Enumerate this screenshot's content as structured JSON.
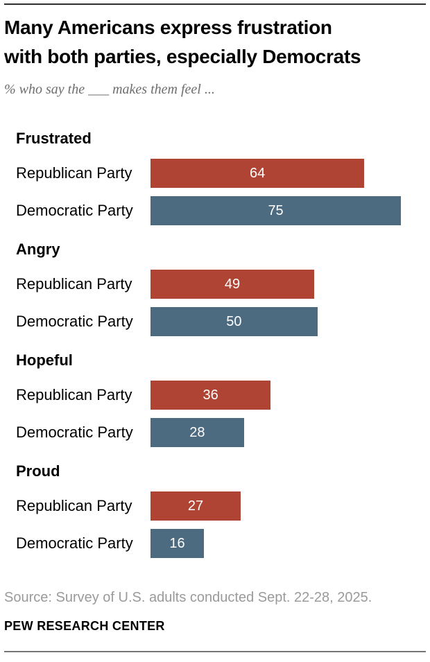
{
  "header": {
    "title_lines": [
      "Many Americans express frustration",
      "with both parties, especially Democrats"
    ],
    "subtitle": "% who say the ___ makes them feel ..."
  },
  "chart_data": {
    "type": "bar",
    "orientation": "horizontal",
    "title": "Many Americans express frustration with both parties, especially Democrats",
    "subtitle": "% who say the ___ makes them feel ...",
    "unit": "percent",
    "xlim": [
      0,
      100
    ],
    "grid": false,
    "legend": "none",
    "value_labels": "inside-center-white",
    "groups": [
      "Frustrated",
      "Angry",
      "Hopeful",
      "Proud"
    ],
    "categories": [
      "Republican Party",
      "Democratic Party"
    ],
    "series": [
      {
        "name": "Republican Party",
        "color": "#af4434",
        "values": [
          64,
          49,
          36,
          27
        ]
      },
      {
        "name": "Democratic Party",
        "color": "#4c6a80",
        "values": [
          75,
          50,
          28,
          16
        ]
      }
    ]
  },
  "footer": {
    "source": "Source: Survey of U.S. adults conducted Sept. 22-28, 2025.",
    "brand": "PEW RESEARCH CENTER"
  },
  "colors": {
    "republican_bar": "#af4434",
    "democratic_bar": "#4c6a80",
    "bar_value_text": "#ffffff",
    "subtitle_text": "#6e6e6e",
    "source_text": "#9a9a9a",
    "top_rule": "#2e2e2e",
    "bottom_rule": "#757575"
  }
}
